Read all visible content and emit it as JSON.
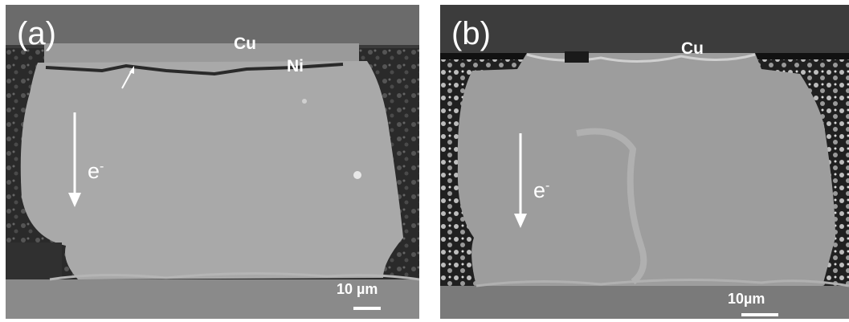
{
  "panels": [
    {
      "label": "(a)",
      "layers": {
        "top": "Cu",
        "interface": "Ni"
      },
      "electron_flow": {
        "symbol": "e",
        "charge": "-"
      },
      "scale_bar": {
        "text": "10 µm"
      }
    },
    {
      "label": "(b)",
      "layers": {
        "top": "Cu"
      },
      "electron_flow": {
        "symbol": "e",
        "charge": "-"
      },
      "scale_bar": {
        "text": "10µm"
      }
    }
  ]
}
